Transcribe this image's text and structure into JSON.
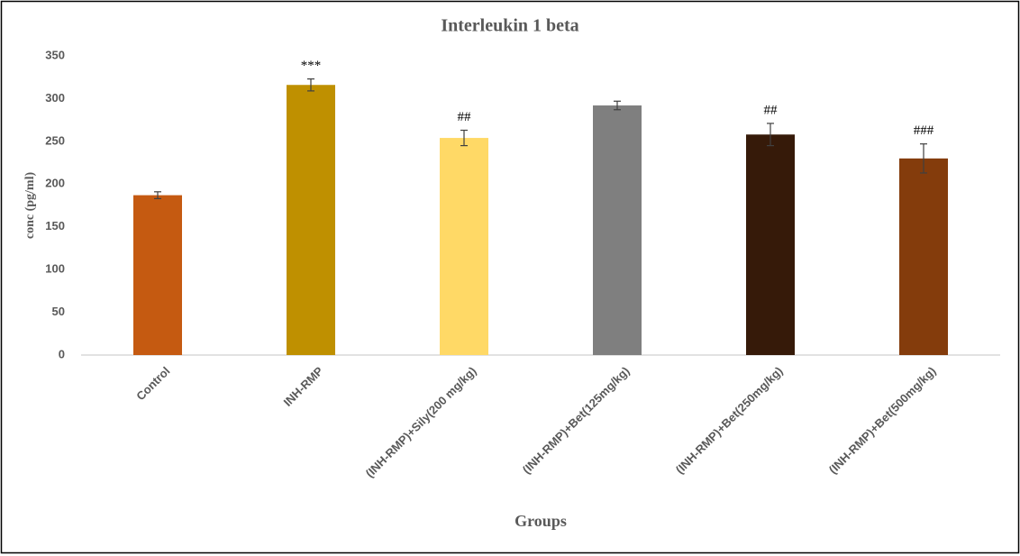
{
  "chart_data": {
    "type": "bar",
    "title": "Interleukin 1 beta",
    "x_label": "Groups",
    "y_label": "conc (pg/ml)",
    "categories": [
      "Control",
      "INH-RMP",
      "(INH-RMP)+Sily(200 mg/kg)",
      "(INH-RMP)+Bet(125mg/kg)",
      "(INH-RMP)+Bet(250mg/kg)",
      "(INH-RMP)+Bet(500mg/kg)"
    ],
    "values": [
      187,
      316,
      254,
      292,
      258,
      230
    ],
    "errors": [
      4,
      7,
      9,
      5,
      13,
      17
    ],
    "annotations": [
      null,
      "***",
      "##",
      null,
      "##",
      "###"
    ],
    "colors": [
      "#c55a11",
      "#bf9000",
      "#ffd966",
      "#7f7f7f",
      "#361a09",
      "#843c0c"
    ],
    "ylim": [
      0,
      350
    ],
    "yticks": [
      0,
      50,
      100,
      150,
      200,
      250,
      300,
      350
    ],
    "grid": false
  }
}
